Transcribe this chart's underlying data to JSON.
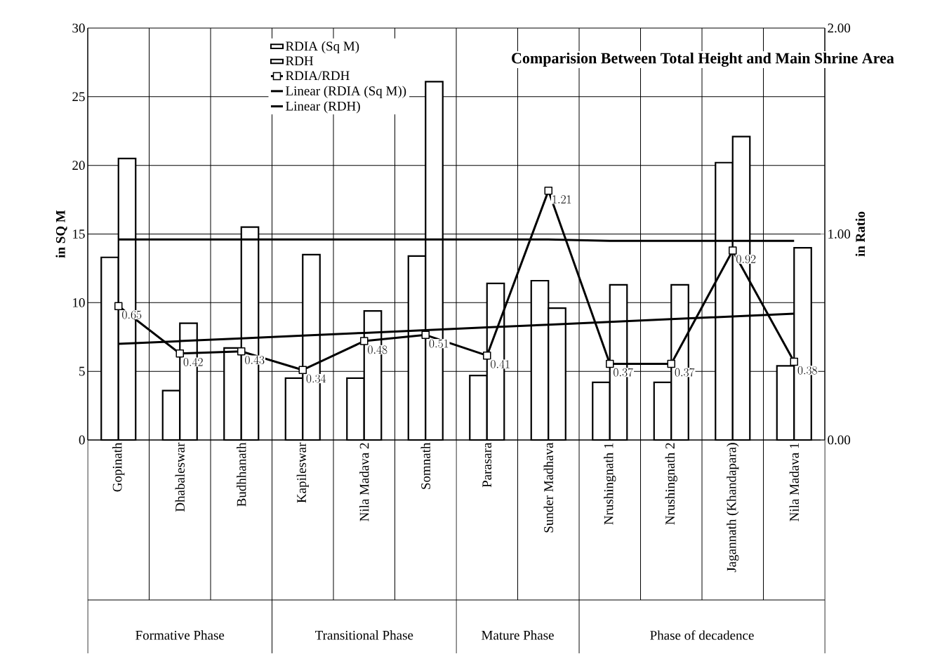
{
  "chart_data": {
    "type": "bar",
    "title": "Comparision Between Total Height and Main Shrine Area",
    "ylabel": "in SQ M",
    "y2label": "in Ratio",
    "categories": [
      "Gopinath",
      "Dhabaleswar",
      "Budhhanath",
      "Kapileswar",
      "Nila Madava 2",
      "Somnath",
      "Parasara",
      "Sunder Madhava",
      "Nrushingnath 1",
      "Nrushingnath 2",
      "Jagannath (Khandapara)",
      "Nila Madava 1"
    ],
    "series": [
      {
        "name": "RDIA (Sq M)",
        "type": "bar",
        "color": "#ffffff",
        "values": [
          13.3,
          3.6,
          6.7,
          4.5,
          4.5,
          13.4,
          4.7,
          11.6,
          4.2,
          4.2,
          20.2,
          5.4
        ]
      },
      {
        "name": "RDH",
        "type": "bar",
        "color": "#ffffff",
        "values": [
          20.5,
          8.5,
          15.5,
          13.5,
          9.4,
          26.1,
          11.4,
          9.6,
          11.3,
          11.3,
          22.1,
          14.0
        ]
      },
      {
        "name": "RDIA/RDH",
        "type": "line",
        "axis": "y2",
        "marker": "square",
        "data_labels": true,
        "color": "#000000",
        "values": [
          0.65,
          0.42,
          0.43,
          0.34,
          0.48,
          0.51,
          0.41,
          1.21,
          0.37,
          0.37,
          0.92,
          0.38
        ]
      },
      {
        "name": "Linear (RDIA (Sq M))",
        "type": "line",
        "marker": "none",
        "color": "#000000",
        "values": [
          7.0,
          7.2,
          7.4,
          7.6,
          7.8,
          8.0,
          8.2,
          8.4,
          8.6,
          8.8,
          9.0,
          9.2
        ]
      },
      {
        "name": "Linear (RDH)",
        "type": "line",
        "marker": "none",
        "color": "#000000",
        "values": [
          14.6,
          14.6,
          14.6,
          14.6,
          14.6,
          14.6,
          14.6,
          14.6,
          14.5,
          14.5,
          14.5,
          14.5
        ]
      }
    ],
    "ylim": [
      0,
      30
    ],
    "yticks": [
      0,
      5,
      10,
      15,
      20,
      25,
      30
    ],
    "y2lim": [
      0,
      2
    ],
    "y2ticks": [
      {
        "value": 0,
        "label": "0.00"
      },
      {
        "value": 1,
        "label": "1.00"
      },
      {
        "value": 2,
        "label": "2.00"
      }
    ],
    "grid": true,
    "legend": "top left",
    "annotations": [
      "Formative Phase",
      "Transitional Phase",
      "Mature Phase",
      "Phase of decadence"
    ]
  }
}
